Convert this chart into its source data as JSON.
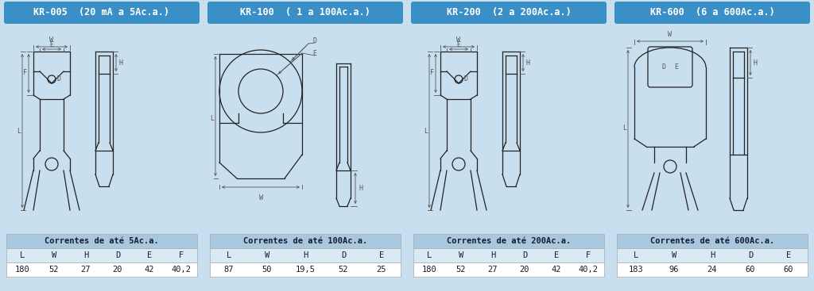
{
  "bg_color": "#c8dff0",
  "white": "#ffffff",
  "dark": "#222222",
  "blue_header": "#3a8fc7",
  "table_header_bg": "#a8c8e0",
  "table_row_bg": "#daeaf5",
  "text_dark": "#1a1a2e",
  "panels": [
    {
      "title": "KR-005  (20 mA a 5Ac.a.)",
      "table_header": "Correntes de até 5Ac.a.",
      "col_labels": [
        "L",
        "W",
        "H",
        "D",
        "E",
        "F"
      ],
      "values": [
        "180",
        "52",
        "27",
        "20",
        "42",
        "40,2"
      ]
    },
    {
      "title": "KR-100  ( 1 a 100Ac.a.)",
      "table_header": "Correntes de até 100Ac.a.",
      "col_labels": [
        "L",
        "W",
        "H",
        "D",
        "E"
      ],
      "values": [
        "87",
        "50",
        "19,5",
        "52",
        "25"
      ]
    },
    {
      "title": "KR-200  (2 a 200Ac.a.)",
      "table_header": "Correntes de até 200Ac.a.",
      "col_labels": [
        "L",
        "W",
        "H",
        "D",
        "E",
        "F"
      ],
      "values": [
        "180",
        "52",
        "27",
        "20",
        "42",
        "40,2"
      ]
    },
    {
      "title": "KR-600  (6 a 600Ac.a.)",
      "table_header": "Correntes de até 600Ac.a.",
      "col_labels": [
        "L",
        "W",
        "H",
        "D",
        "E"
      ],
      "values": [
        "183",
        "96",
        "24",
        "60",
        "60"
      ]
    }
  ]
}
